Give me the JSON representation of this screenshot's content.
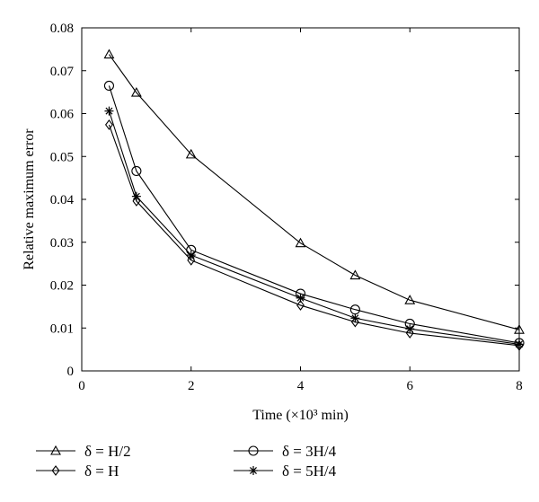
{
  "chart_data": {
    "type": "line",
    "xlabel": "Time (×10³ min)",
    "ylabel": "Relative maximum error",
    "xlim": [
      0,
      8
    ],
    "ylim": [
      0,
      0.08
    ],
    "xticks": [
      0,
      2,
      4,
      6,
      8
    ],
    "xtick_labels": [
      "0",
      "2",
      "4",
      "6",
      "8"
    ],
    "yticks": [
      0,
      0.01,
      0.02,
      0.03,
      0.04,
      0.05,
      0.06,
      0.07,
      0.08
    ],
    "ytick_labels": [
      "0",
      "0.01",
      "0.02",
      "0.03",
      "0.04",
      "0.05",
      "0.06",
      "0.07",
      "0.08"
    ],
    "grid": false,
    "legend_position": "bottom",
    "x": [
      0.5,
      1,
      2,
      4,
      5,
      6,
      8
    ],
    "series": [
      {
        "name": "δ = H/2",
        "marker": "triangle",
        "values": [
          0.0738,
          0.0649,
          0.0505,
          0.0298,
          0.0223,
          0.0165,
          0.0096
        ]
      },
      {
        "name": "δ = 3H/4",
        "marker": "circle",
        "values": [
          0.0665,
          0.0466,
          0.0282,
          0.018,
          0.0143,
          0.011,
          0.0065
        ]
      },
      {
        "name": "δ = H",
        "marker": "diamond",
        "values": [
          0.0574,
          0.0396,
          0.0258,
          0.0153,
          0.0114,
          0.0088,
          0.0059
        ]
      },
      {
        "name": "δ = 5H/4",
        "marker": "asterisk",
        "values": [
          0.0606,
          0.0407,
          0.027,
          0.017,
          0.0123,
          0.0098,
          0.0062
        ]
      }
    ]
  }
}
